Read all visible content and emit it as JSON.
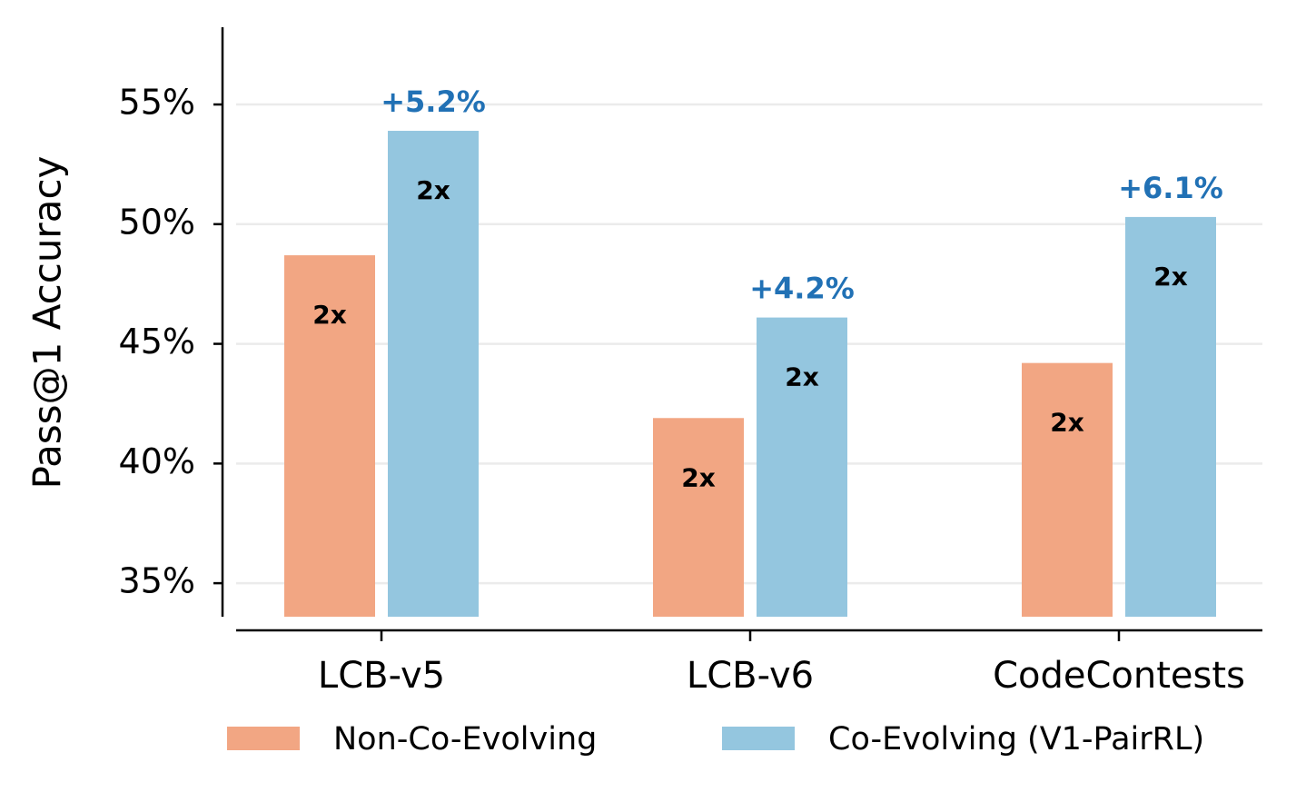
{
  "chart_data": {
    "type": "bar",
    "ylabel": "Pass@1 Accuracy",
    "categories": [
      "LCB-v5",
      "LCB-v6",
      "CodeContests"
    ],
    "series": [
      {
        "name": "Non-Co-Evolving",
        "color": "#f2a683",
        "values": [
          48.7,
          41.9,
          44.2
        ],
        "inner_labels": [
          "2x",
          "2x",
          "2x"
        ]
      },
      {
        "name": "Co-Evolving (V1-PairRL)",
        "color": "#94c6df",
        "values": [
          53.9,
          46.1,
          50.3
        ],
        "inner_labels": [
          "2x",
          "2x",
          "2x"
        ],
        "delta_labels": [
          "+5.2%",
          "+4.2%",
          "+6.1%"
        ],
        "delta_color": "#2171b5"
      }
    ],
    "ylim": [
      33.6,
      58.2
    ],
    "yticks": [
      {
        "value": 35,
        "label": "35%"
      },
      {
        "value": 40,
        "label": "40%"
      },
      {
        "value": 45,
        "label": "45%"
      },
      {
        "value": 50,
        "label": "50%"
      },
      {
        "value": 55,
        "label": "55%"
      }
    ],
    "grid": true,
    "legend": "bottom"
  }
}
